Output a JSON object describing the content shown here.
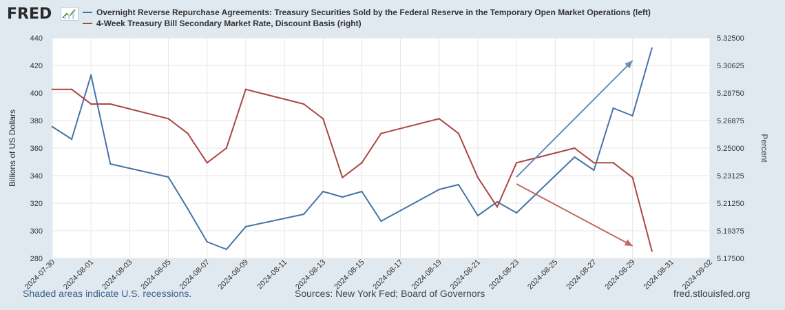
{
  "header": {
    "logo_text": "FRED",
    "logo_icon": "chart-line-icon"
  },
  "footer": {
    "recessions_note": "Shaded areas indicate U.S. recessions.",
    "sources": "Sources: New York Fed; Board of Governors",
    "site": "fred.stlouisfed.org"
  },
  "chart_data": {
    "type": "line",
    "title": "",
    "grid": true,
    "legend_position": "top-left",
    "x_ticks": [
      "2024-07-30",
      "2024-08-01",
      "2024-08-03",
      "2024-08-05",
      "2024-08-07",
      "2024-08-09",
      "2024-08-11",
      "2024-08-13",
      "2024-08-15",
      "2024-08-17",
      "2024-08-19",
      "2024-08-21",
      "2024-08-23",
      "2024-08-25",
      "2024-08-27",
      "2024-08-29",
      "2024-08-31",
      "2024-09-02"
    ],
    "xlim": [
      "2024-07-30",
      "2024-09-02"
    ],
    "y_left": {
      "label": "Billions of US Dollars",
      "lim": [
        280,
        440
      ],
      "ticks": [
        "440",
        "420",
        "400",
        "380",
        "360",
        "340",
        "320",
        "300",
        "280"
      ]
    },
    "y_right": {
      "label": "Percent",
      "lim": [
        5.175,
        5.325
      ],
      "ticks": [
        "5.32500",
        "5.30625",
        "5.28750",
        "5.26875",
        "5.25000",
        "5.23125",
        "5.21250",
        "5.19375",
        "5.17500"
      ]
    },
    "series": [
      {
        "name": "Overnight Reverse Repurchase Agreements: Treasury Securities Sold by the Federal Reserve in the Temporary Open Market Operations (left)",
        "axis": "left",
        "color": "#4572a7",
        "x": [
          "2024-07-30",
          "2024-07-31",
          "2024-08-01",
          "2024-08-02",
          "2024-08-05",
          "2024-08-06",
          "2024-08-07",
          "2024-08-08",
          "2024-08-09",
          "2024-08-12",
          "2024-08-13",
          "2024-08-14",
          "2024-08-15",
          "2024-08-16",
          "2024-08-19",
          "2024-08-20",
          "2024-08-21",
          "2024-08-22",
          "2024-08-23",
          "2024-08-26",
          "2024-08-27",
          "2024-08-28",
          "2024-08-29",
          "2024-08-30"
        ],
        "values": [
          375.5,
          366.5,
          413.0,
          348.5,
          339.0,
          316.0,
          292.0,
          286.5,
          303.0,
          312.0,
          328.5,
          324.5,
          328.5,
          307.0,
          330.0,
          333.5,
          311.0,
          321.0,
          313.0,
          353.5,
          344.0,
          389.0,
          383.5,
          432.5
        ]
      },
      {
        "name": "4-Week Treasury Bill Secondary Market Rate, Discount Basis (right)",
        "axis": "right",
        "color": "#aa4643",
        "x": [
          "2024-07-30",
          "2024-07-31",
          "2024-08-01",
          "2024-08-02",
          "2024-08-05",
          "2024-08-06",
          "2024-08-07",
          "2024-08-08",
          "2024-08-09",
          "2024-08-12",
          "2024-08-13",
          "2024-08-14",
          "2024-08-15",
          "2024-08-16",
          "2024-08-19",
          "2024-08-20",
          "2024-08-21",
          "2024-08-22",
          "2024-08-23",
          "2024-08-26",
          "2024-08-27",
          "2024-08-28",
          "2024-08-29",
          "2024-08-30"
        ],
        "values": [
          5.29,
          5.29,
          5.28,
          5.28,
          5.27,
          5.26,
          5.24,
          5.25,
          5.29,
          5.28,
          5.27,
          5.23,
          5.24,
          5.26,
          5.27,
          5.26,
          5.23,
          5.21,
          5.24,
          5.25,
          5.24,
          5.24,
          5.23,
          5.18
        ]
      }
    ],
    "annotations": [
      {
        "type": "arrow",
        "color": "#6a8cb6",
        "from": [
          "2024-08-23",
          339.0
        ],
        "to": [
          "2024-08-29",
          423.5
        ]
      },
      {
        "type": "arrow",
        "color": "#c06a66",
        "from": [
          "2024-08-23",
          334.0
        ],
        "to": [
          "2024-08-29",
          289.0
        ]
      }
    ]
  }
}
